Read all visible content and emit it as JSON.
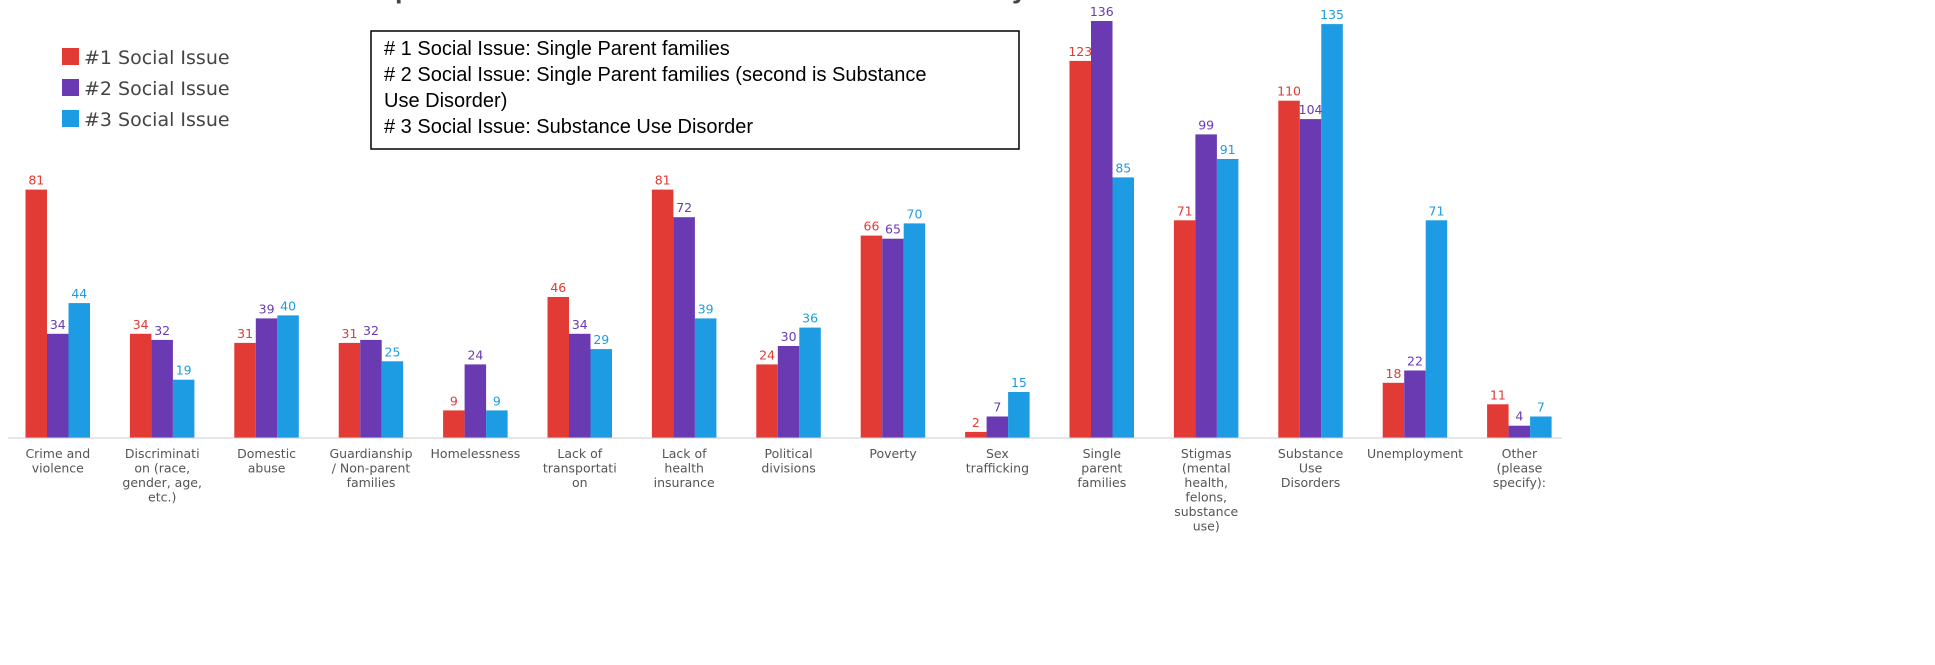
{
  "chart_data": {
    "type": "bar",
    "title": "p",
    "title_suffix": "y",
    "categories": [
      [
        "Crime and",
        "violence"
      ],
      [
        "Discriminati",
        "on (race,",
        "gender, age,",
        "etc.)"
      ],
      [
        "Domestic",
        "abuse"
      ],
      [
        "Guardianship",
        "/ Non-parent",
        "families"
      ],
      [
        "Homelessness"
      ],
      [
        "Lack of",
        "transportati",
        "on"
      ],
      [
        "Lack of",
        "health",
        "insurance"
      ],
      [
        "Political",
        "divisions"
      ],
      [
        "Poverty"
      ],
      [
        "Sex",
        "trafficking"
      ],
      [
        "Single",
        "parent",
        "families"
      ],
      [
        "Stigmas",
        "(mental",
        "health,",
        "felons,",
        "substance",
        "use)"
      ],
      [
        "Substance",
        "Use",
        "Disorders"
      ],
      [
        "Unemployment"
      ],
      [
        "Other",
        "(please",
        "specify):"
      ]
    ],
    "series": [
      {
        "name": "#1 Social Issue",
        "color": "#e23b36",
        "values": [
          81,
          34,
          31,
          31,
          9,
          46,
          81,
          24,
          66,
          2,
          123,
          71,
          110,
          18,
          11
        ]
      },
      {
        "name": "#2 Social Issue",
        "color": "#6a3ab2",
        "values": [
          34,
          32,
          39,
          32,
          24,
          34,
          72,
          30,
          65,
          7,
          136,
          99,
          104,
          22,
          4
        ]
      },
      {
        "name": "#3 Social Issue",
        "color": "#1d9be3",
        "values": [
          44,
          19,
          40,
          25,
          9,
          29,
          39,
          36,
          70,
          15,
          85,
          91,
          135,
          71,
          7
        ]
      }
    ],
    "ylim": [
      0,
      140
    ],
    "legend_position": "top-left",
    "grid": false
  },
  "annotation": {
    "lines": [
      "# 1 Social Issue: Single Parent families",
      "# 2 Social Issue: Single Parent families (second is Substance",
      "Use Disorder)",
      "# 3 Social Issue: Substance Use Disorder"
    ]
  }
}
